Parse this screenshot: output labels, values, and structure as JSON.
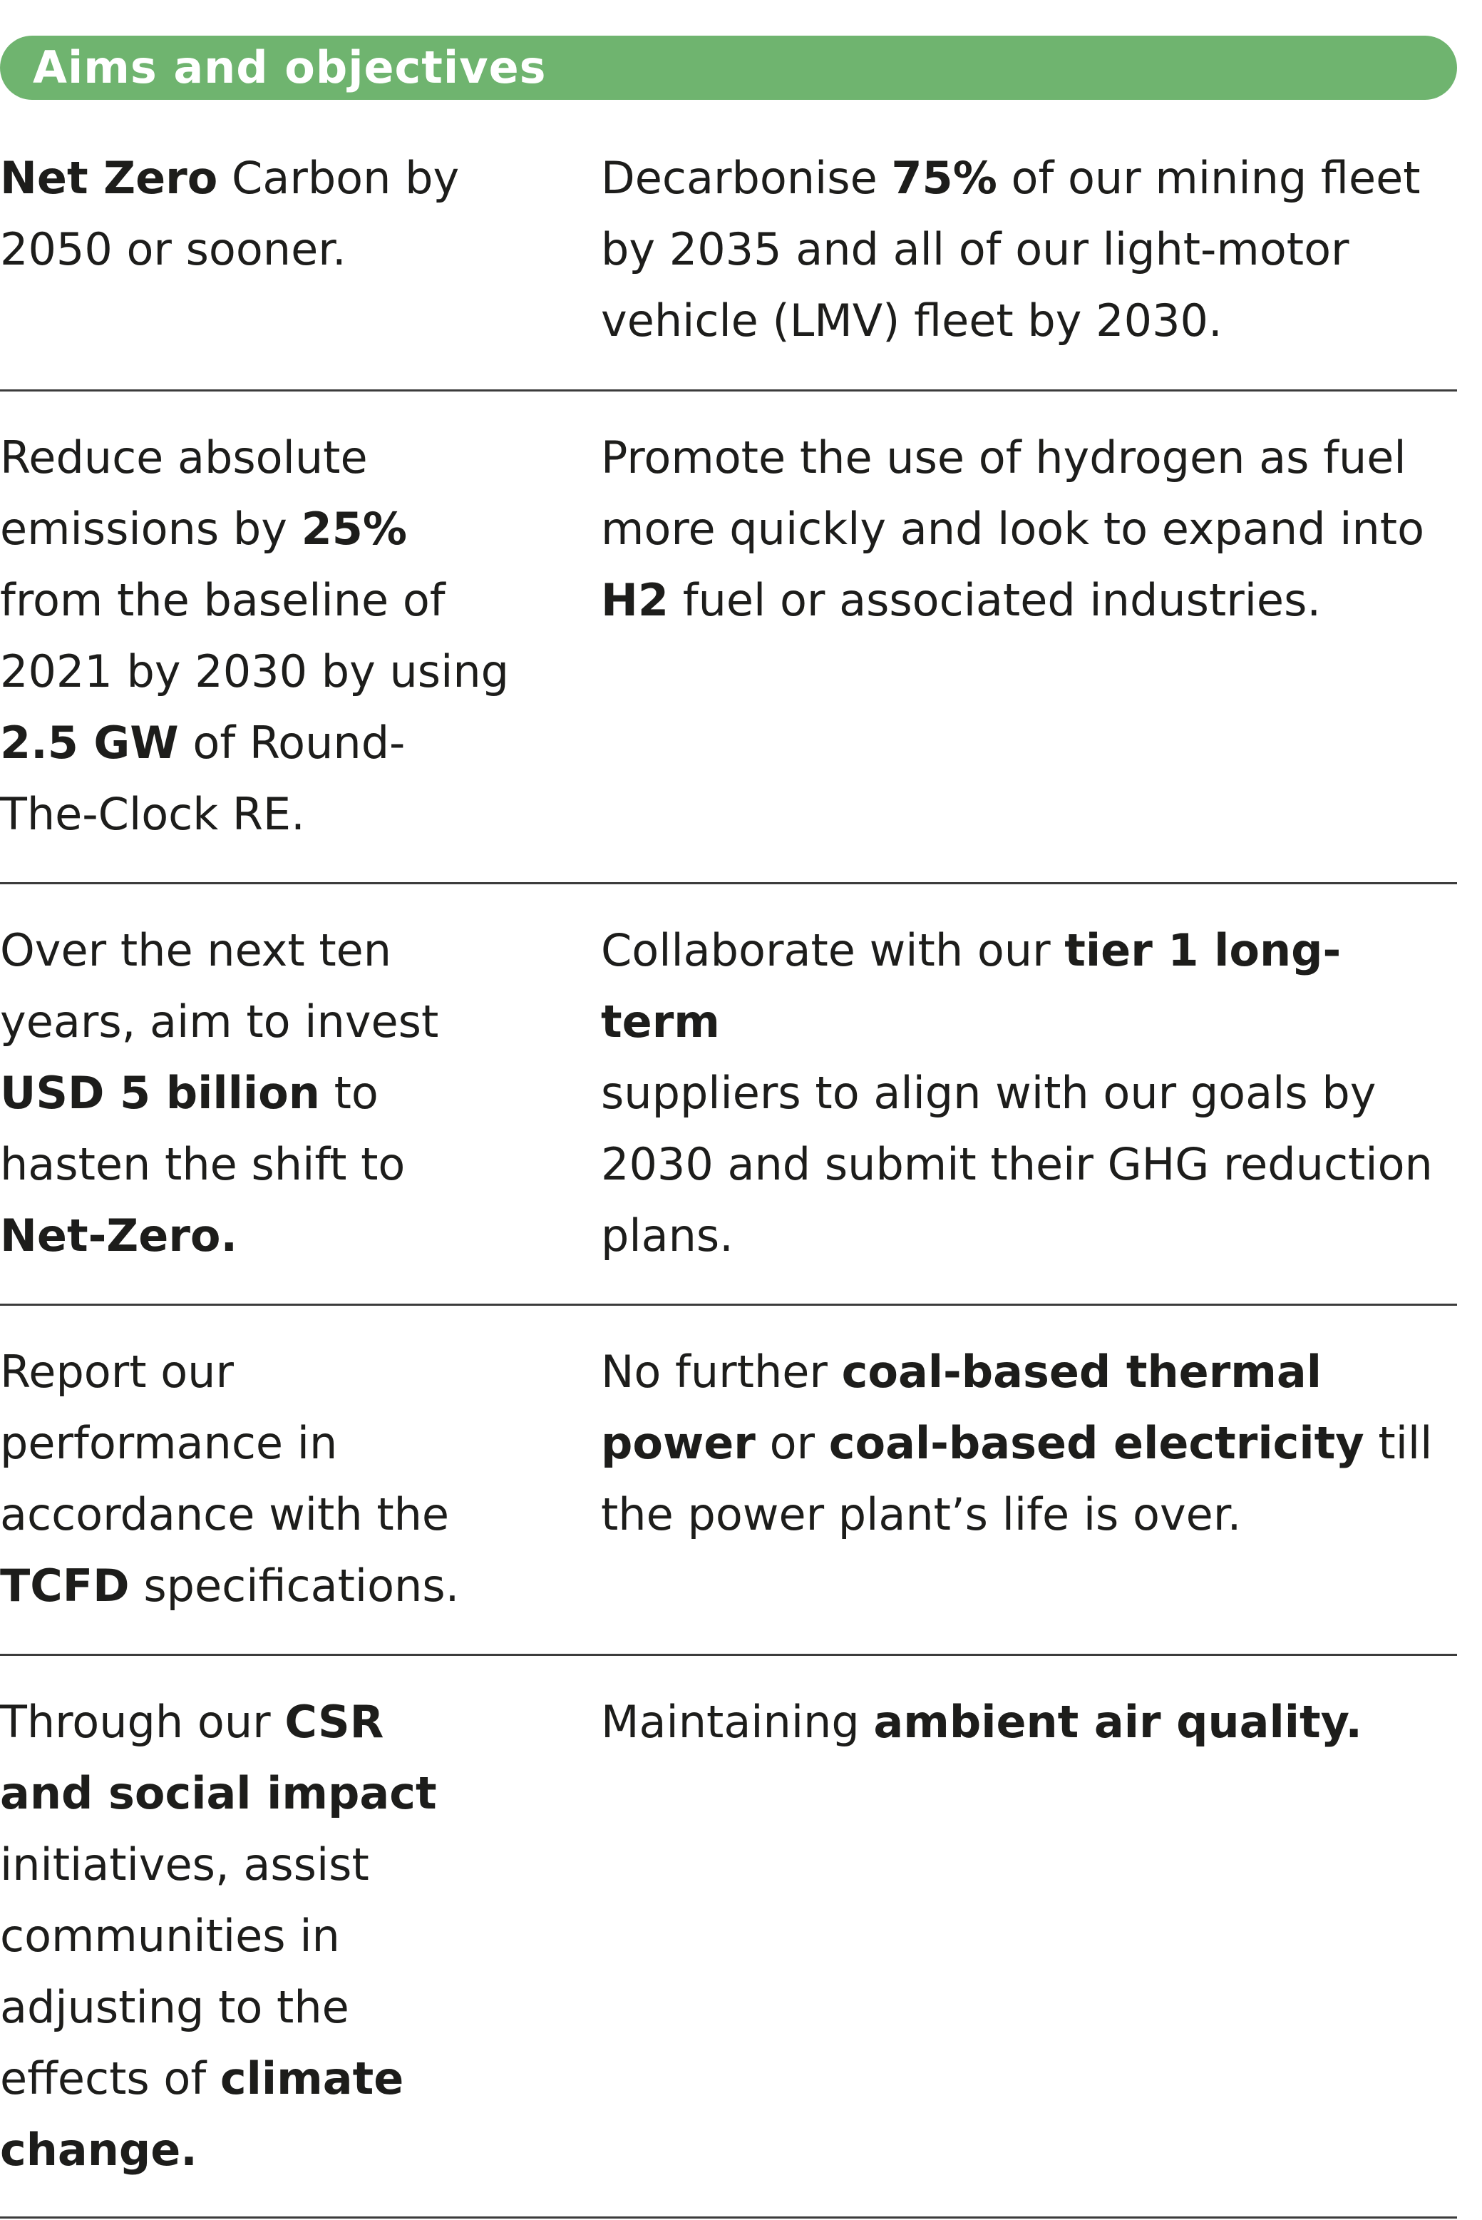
{
  "header": {
    "title": "Aims and objectives",
    "color": "#6fb46f"
  },
  "rows": [
    {
      "left": [
        {
          "t": "Net Zero",
          "b": true
        },
        {
          "t": " Carbon by"
        },
        {
          "br": true
        },
        {
          "t": "2050 or sooner."
        }
      ],
      "right": [
        {
          "t": "Decarbonise "
        },
        {
          "t": "75%",
          "b": true
        },
        {
          "t": " of our mining fleet"
        },
        {
          "br": true
        },
        {
          "t": "by 2035 and all of our light-motor"
        },
        {
          "br": true
        },
        {
          "t": "vehicle (LMV) fleet by 2030."
        }
      ]
    },
    {
      "left": [
        {
          "t": "Reduce absolute"
        },
        {
          "br": true
        },
        {
          "t": "emissions by "
        },
        {
          "t": "25%",
          "b": true
        },
        {
          "br": true
        },
        {
          "t": "from the baseline of"
        },
        {
          "br": true
        },
        {
          "t": "2021 by 2030 by using"
        },
        {
          "br": true
        },
        {
          "t": "2.5 GW",
          "b": true
        },
        {
          "t": " of Round-"
        },
        {
          "br": true
        },
        {
          "t": "The-Clock RE."
        }
      ],
      "right": [
        {
          "t": "Promote the use of hydrogen as fuel"
        },
        {
          "br": true
        },
        {
          "t": "more quickly and look to expand into"
        },
        {
          "br": true
        },
        {
          "t": "H2",
          "b": true
        },
        {
          "t": " fuel or associated industries."
        }
      ]
    },
    {
      "left": [
        {
          "t": "Over the next ten"
        },
        {
          "br": true
        },
        {
          "t": "years, aim to invest"
        },
        {
          "br": true
        },
        {
          "t": "USD 5 billion",
          "b": true
        },
        {
          "t": " to"
        },
        {
          "br": true
        },
        {
          "t": "hasten the shift to"
        },
        {
          "br": true
        },
        {
          "t": "Net-Zero.",
          "b": true
        }
      ],
      "right": [
        {
          "t": "Collaborate with our "
        },
        {
          "t": "tier 1 long-term",
          "b": true
        },
        {
          "br": true
        },
        {
          "t": "suppliers to align with our goals by"
        },
        {
          "br": true
        },
        {
          "t": "2030 and submit their GHG reduction"
        },
        {
          "br": true
        },
        {
          "t": "plans."
        }
      ]
    },
    {
      "left": [
        {
          "t": "Report our"
        },
        {
          "br": true
        },
        {
          "t": "performance in"
        },
        {
          "br": true
        },
        {
          "t": "accordance with the"
        },
        {
          "br": true
        },
        {
          "t": "TCFD",
          "b": true
        },
        {
          "t": " specifications."
        }
      ],
      "right": [
        {
          "t": "No further "
        },
        {
          "t": "coal-based thermal",
          "b": true
        },
        {
          "br": true
        },
        {
          "t": "power",
          "b": true
        },
        {
          "t": " or "
        },
        {
          "t": "coal-based electricity",
          "b": true
        },
        {
          "t": " till"
        },
        {
          "br": true
        },
        {
          "t": "the power plant’s life is over."
        }
      ]
    },
    {
      "left": [
        {
          "t": "Through our "
        },
        {
          "t": "CSR",
          "b": true
        },
        {
          "br": true
        },
        {
          "t": "and social impact",
          "b": true
        },
        {
          "br": true
        },
        {
          "t": "initiatives, assist"
        },
        {
          "br": true
        },
        {
          "t": "communities in"
        },
        {
          "br": true
        },
        {
          "t": "adjusting to the"
        },
        {
          "br": true
        },
        {
          "t": "effects of "
        },
        {
          "t": "climate",
          "b": true
        },
        {
          "br": true
        },
        {
          "t": "change.",
          "b": true
        }
      ],
      "right": [
        {
          "t": "Maintaining "
        },
        {
          "t": "ambient air quality.",
          "b": true
        }
      ]
    }
  ]
}
